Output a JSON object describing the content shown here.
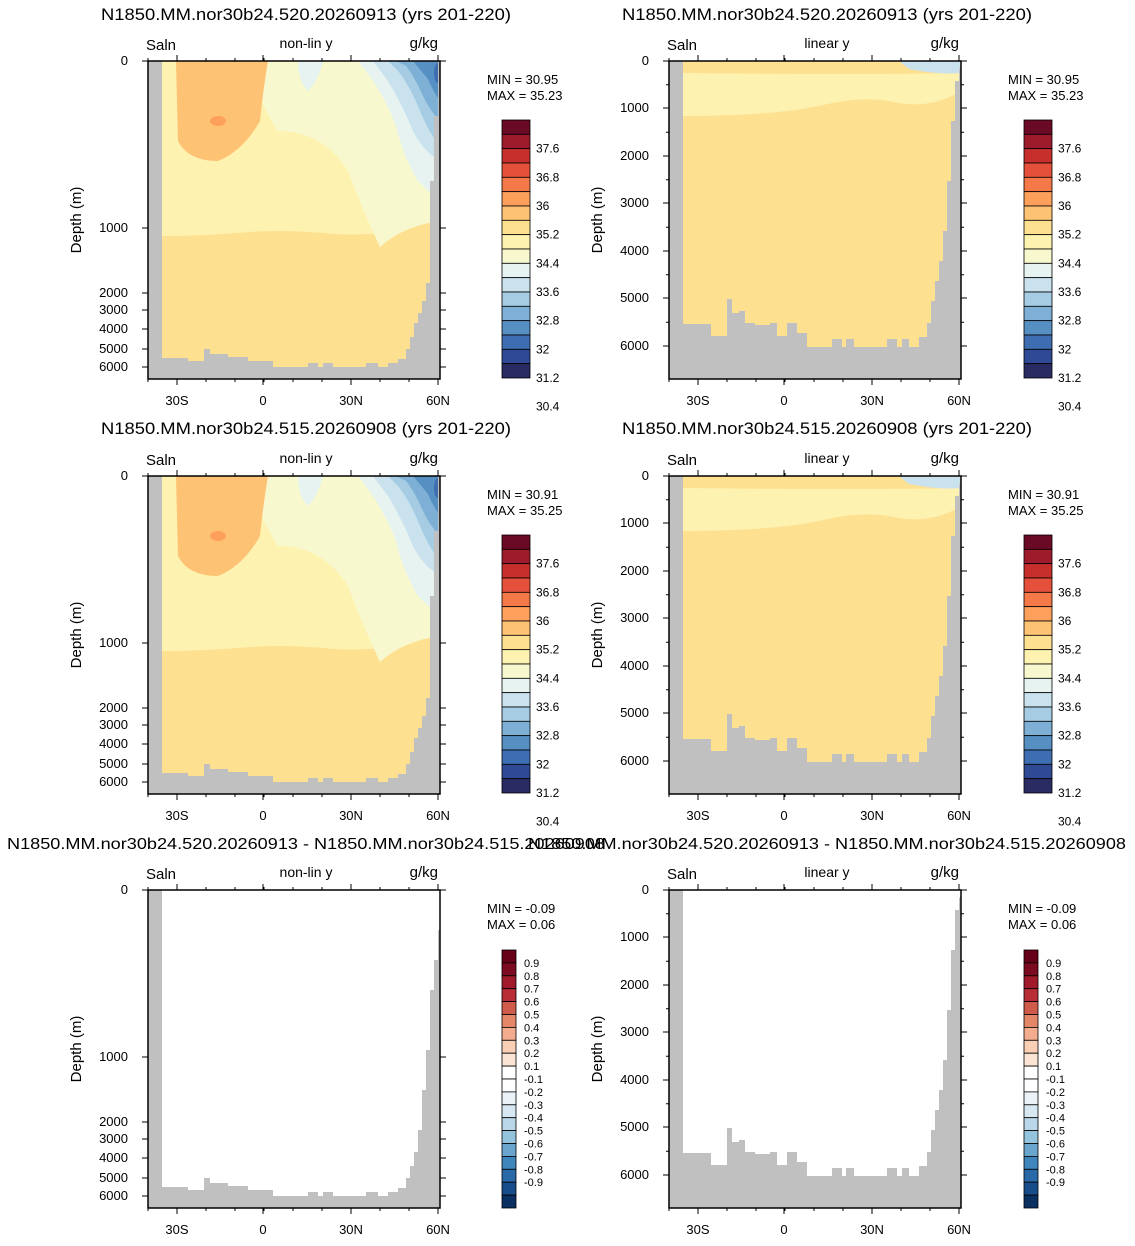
{
  "colors": {
    "land": "#c0c0c0",
    "abs_palette": [
      "#2b2b63",
      "#2f4994",
      "#3f6db1",
      "#5690c2",
      "#7eb0d6",
      "#a6cce3",
      "#c9e2ee",
      "#e6f3f1",
      "#f8f8cf",
      "#fef2b0",
      "#fee091",
      "#fdc274",
      "#fca05c",
      "#f57848",
      "#e4503a",
      "#c72f2c",
      "#9e1b2b",
      "#6b0a25"
    ],
    "diff_palette": [
      "#0a2f61",
      "#174d8a",
      "#2a69a8",
      "#3f86bc",
      "#6aa5cd",
      "#94c3dd",
      "#bad7e9",
      "#d7e8f2",
      "#ebf3f8",
      "#ffffff",
      "#ffffff",
      "#fbe4d4",
      "#f9cfb6",
      "#f3ad8e",
      "#e38768",
      "#cf5b4a",
      "#b92e36",
      "#a01a2c",
      "#7c0a20",
      "#670019"
    ]
  },
  "panels": [
    {
      "title": "N1850.MM.nor30b24.520.20260913 (yrs 201-220)",
      "var_label": "Saln",
      "scale_label": "non-lin y",
      "units_label": "g/kg",
      "ylabel": "Depth (m)",
      "min_label": "MIN =  30.95",
      "max_label": "MAX =  35.23",
      "y_ticks": [
        "0",
        "1000",
        "2000",
        "3000",
        "4000",
        "5000",
        "6000"
      ],
      "x_ticks": [
        "30S",
        "0",
        "30N",
        "60N"
      ],
      "cbar_labels": [
        "37.6",
        "36.8",
        "36",
        "35.2",
        "34.4",
        "33.6",
        "32.8",
        "32",
        "31.2",
        "30.4"
      ]
    },
    {
      "title": "N1850.MM.nor30b24.520.20260913 (yrs 201-220)",
      "var_label": "Saln",
      "scale_label": "linear y",
      "units_label": "g/kg",
      "ylabel": "Depth (m)",
      "min_label": "MIN =  30.95",
      "max_label": "MAX =  35.23",
      "y_ticks": [
        "0",
        "1000",
        "2000",
        "3000",
        "4000",
        "5000",
        "6000"
      ],
      "x_ticks": [
        "30S",
        "0",
        "30N",
        "60N"
      ],
      "cbar_labels": [
        "37.6",
        "36.8",
        "36",
        "35.2",
        "34.4",
        "33.6",
        "32.8",
        "32",
        "31.2",
        "30.4"
      ]
    },
    {
      "title": "N1850.MM.nor30b24.515.20260908 (yrs 201-220)",
      "var_label": "Saln",
      "scale_label": "non-lin y",
      "units_label": "g/kg",
      "ylabel": "Depth (m)",
      "min_label": "MIN =  30.91",
      "max_label": "MAX =  35.25",
      "y_ticks": [
        "0",
        "1000",
        "2000",
        "3000",
        "4000",
        "5000",
        "6000"
      ],
      "x_ticks": [
        "30S",
        "0",
        "30N",
        "60N"
      ],
      "cbar_labels": [
        "37.6",
        "36.8",
        "36",
        "35.2",
        "34.4",
        "33.6",
        "32.8",
        "32",
        "31.2",
        "30.4"
      ]
    },
    {
      "title": "N1850.MM.nor30b24.515.20260908 (yrs 201-220)",
      "var_label": "Saln",
      "scale_label": "linear y",
      "units_label": "g/kg",
      "ylabel": "Depth (m)",
      "min_label": "MIN =  30.91",
      "max_label": "MAX =  35.25",
      "y_ticks": [
        "0",
        "1000",
        "2000",
        "3000",
        "4000",
        "5000",
        "6000"
      ],
      "x_ticks": [
        "30S",
        "0",
        "30N",
        "60N"
      ],
      "cbar_labels": [
        "37.6",
        "36.8",
        "36",
        "35.2",
        "34.4",
        "33.6",
        "32.8",
        "32",
        "31.2",
        "30.4"
      ]
    },
    {
      "title": "N1850.MM.nor30b24.520.20260913 - N1850.MM.nor30b24.515.20260908",
      "var_label": "Saln",
      "scale_label": "non-lin y",
      "units_label": "g/kg",
      "ylabel": "Depth (m)",
      "min_label": "MIN =  -0.09",
      "max_label": "MAX =   0.06",
      "y_ticks": [
        "0",
        "1000",
        "2000",
        "3000",
        "4000",
        "5000",
        "6000"
      ],
      "x_ticks": [
        "30S",
        "0",
        "30N",
        "60N"
      ],
      "cbar_labels": [
        "0.9",
        "0.8",
        "0.7",
        "0.6",
        "0.5",
        "0.4",
        "0.3",
        "0.2",
        "0.1",
        "-0.1",
        "-0.2",
        "-0.3",
        "-0.4",
        "-0.5",
        "-0.6",
        "-0.7",
        "-0.8",
        "-0.9"
      ]
    },
    {
      "title": "N1850.MM.nor30b24.520.20260913 - N1850.MM.nor30b24.515.20260908",
      "var_label": "Saln",
      "scale_label": "linear y",
      "units_label": "g/kg",
      "ylabel": "Depth (m)",
      "min_label": "MIN =  -0.09",
      "max_label": "MAX =   0.06",
      "y_ticks": [
        "0",
        "1000",
        "2000",
        "3000",
        "4000",
        "5000",
        "6000"
      ],
      "x_ticks": [
        "30S",
        "0",
        "30N",
        "60N"
      ],
      "cbar_labels": [
        "0.9",
        "0.8",
        "0.7",
        "0.6",
        "0.5",
        "0.4",
        "0.3",
        "0.2",
        "0.1",
        "-0.1",
        "-0.2",
        "-0.3",
        "-0.4",
        "-0.5",
        "-0.6",
        "-0.7",
        "-0.8",
        "-0.9"
      ]
    }
  ],
  "chart_data": [
    {
      "type": "heatmap",
      "title": "N1850.MM.nor30b24.520.20260913 (yrs 201-220)",
      "ylabel": "Depth (m)",
      "y_scale": "non-linear",
      "ylim": [
        0,
        6000
      ],
      "x_ticks": [
        "30S",
        "0",
        "30N",
        "60N"
      ],
      "colorbar": {
        "levels": [
          30.4,
          31.2,
          32,
          32.8,
          33.6,
          34.4,
          35.2,
          36,
          36.8,
          37.6
        ]
      },
      "min": 30.95,
      "max": 35.23
    },
    {
      "type": "heatmap",
      "title": "N1850.MM.nor30b24.520.20260913 (yrs 201-220)",
      "ylabel": "Depth (m)",
      "y_scale": "linear",
      "ylim": [
        0,
        6000
      ],
      "x_ticks": [
        "30S",
        "0",
        "30N",
        "60N"
      ],
      "colorbar": {
        "levels": [
          30.4,
          31.2,
          32,
          32.8,
          33.6,
          34.4,
          35.2,
          36,
          36.8,
          37.6
        ]
      },
      "min": 30.95,
      "max": 35.23
    },
    {
      "type": "heatmap",
      "title": "N1850.MM.nor30b24.515.20260908 (yrs 201-220)",
      "ylabel": "Depth (m)",
      "y_scale": "non-linear",
      "ylim": [
        0,
        6000
      ],
      "x_ticks": [
        "30S",
        "0",
        "30N",
        "60N"
      ],
      "colorbar": {
        "levels": [
          30.4,
          31.2,
          32,
          32.8,
          33.6,
          34.4,
          35.2,
          36,
          36.8,
          37.6
        ]
      },
      "min": 30.91,
      "max": 35.25
    },
    {
      "type": "heatmap",
      "title": "N1850.MM.nor30b24.515.20260908 (yrs 201-220)",
      "ylabel": "Depth (m)",
      "y_scale": "linear",
      "ylim": [
        0,
        6000
      ],
      "x_ticks": [
        "30S",
        "0",
        "30N",
        "60N"
      ],
      "colorbar": {
        "levels": [
          30.4,
          31.2,
          32,
          32.8,
          33.6,
          34.4,
          35.2,
          36,
          36.8,
          37.6
        ]
      },
      "min": 30.91,
      "max": 35.25
    },
    {
      "type": "heatmap",
      "title": "N1850.MM.nor30b24.520.20260913 - N1850.MM.nor30b24.515.20260908",
      "ylabel": "Depth (m)",
      "y_scale": "non-linear",
      "ylim": [
        0,
        6000
      ],
      "x_ticks": [
        "30S",
        "0",
        "30N",
        "60N"
      ],
      "colorbar": {
        "levels": [
          -0.9,
          -0.8,
          -0.7,
          -0.6,
          -0.5,
          -0.4,
          -0.3,
          -0.2,
          -0.1,
          0.1,
          0.2,
          0.3,
          0.4,
          0.5,
          0.6,
          0.7,
          0.8,
          0.9
        ]
      },
      "min": -0.09,
      "max": 0.06
    },
    {
      "type": "heatmap",
      "title": "N1850.MM.nor30b24.520.20260913 - N1850.MM.nor30b24.515.20260908",
      "ylabel": "Depth (m)",
      "y_scale": "linear",
      "ylim": [
        0,
        6000
      ],
      "x_ticks": [
        "30S",
        "0",
        "30N",
        "60N"
      ],
      "colorbar": {
        "levels": [
          -0.9,
          -0.8,
          -0.7,
          -0.6,
          -0.5,
          -0.4,
          -0.3,
          -0.2,
          -0.1,
          0.1,
          0.2,
          0.3,
          0.4,
          0.5,
          0.6,
          0.7,
          0.8,
          0.9
        ]
      },
      "min": -0.09,
      "max": 0.06
    }
  ]
}
